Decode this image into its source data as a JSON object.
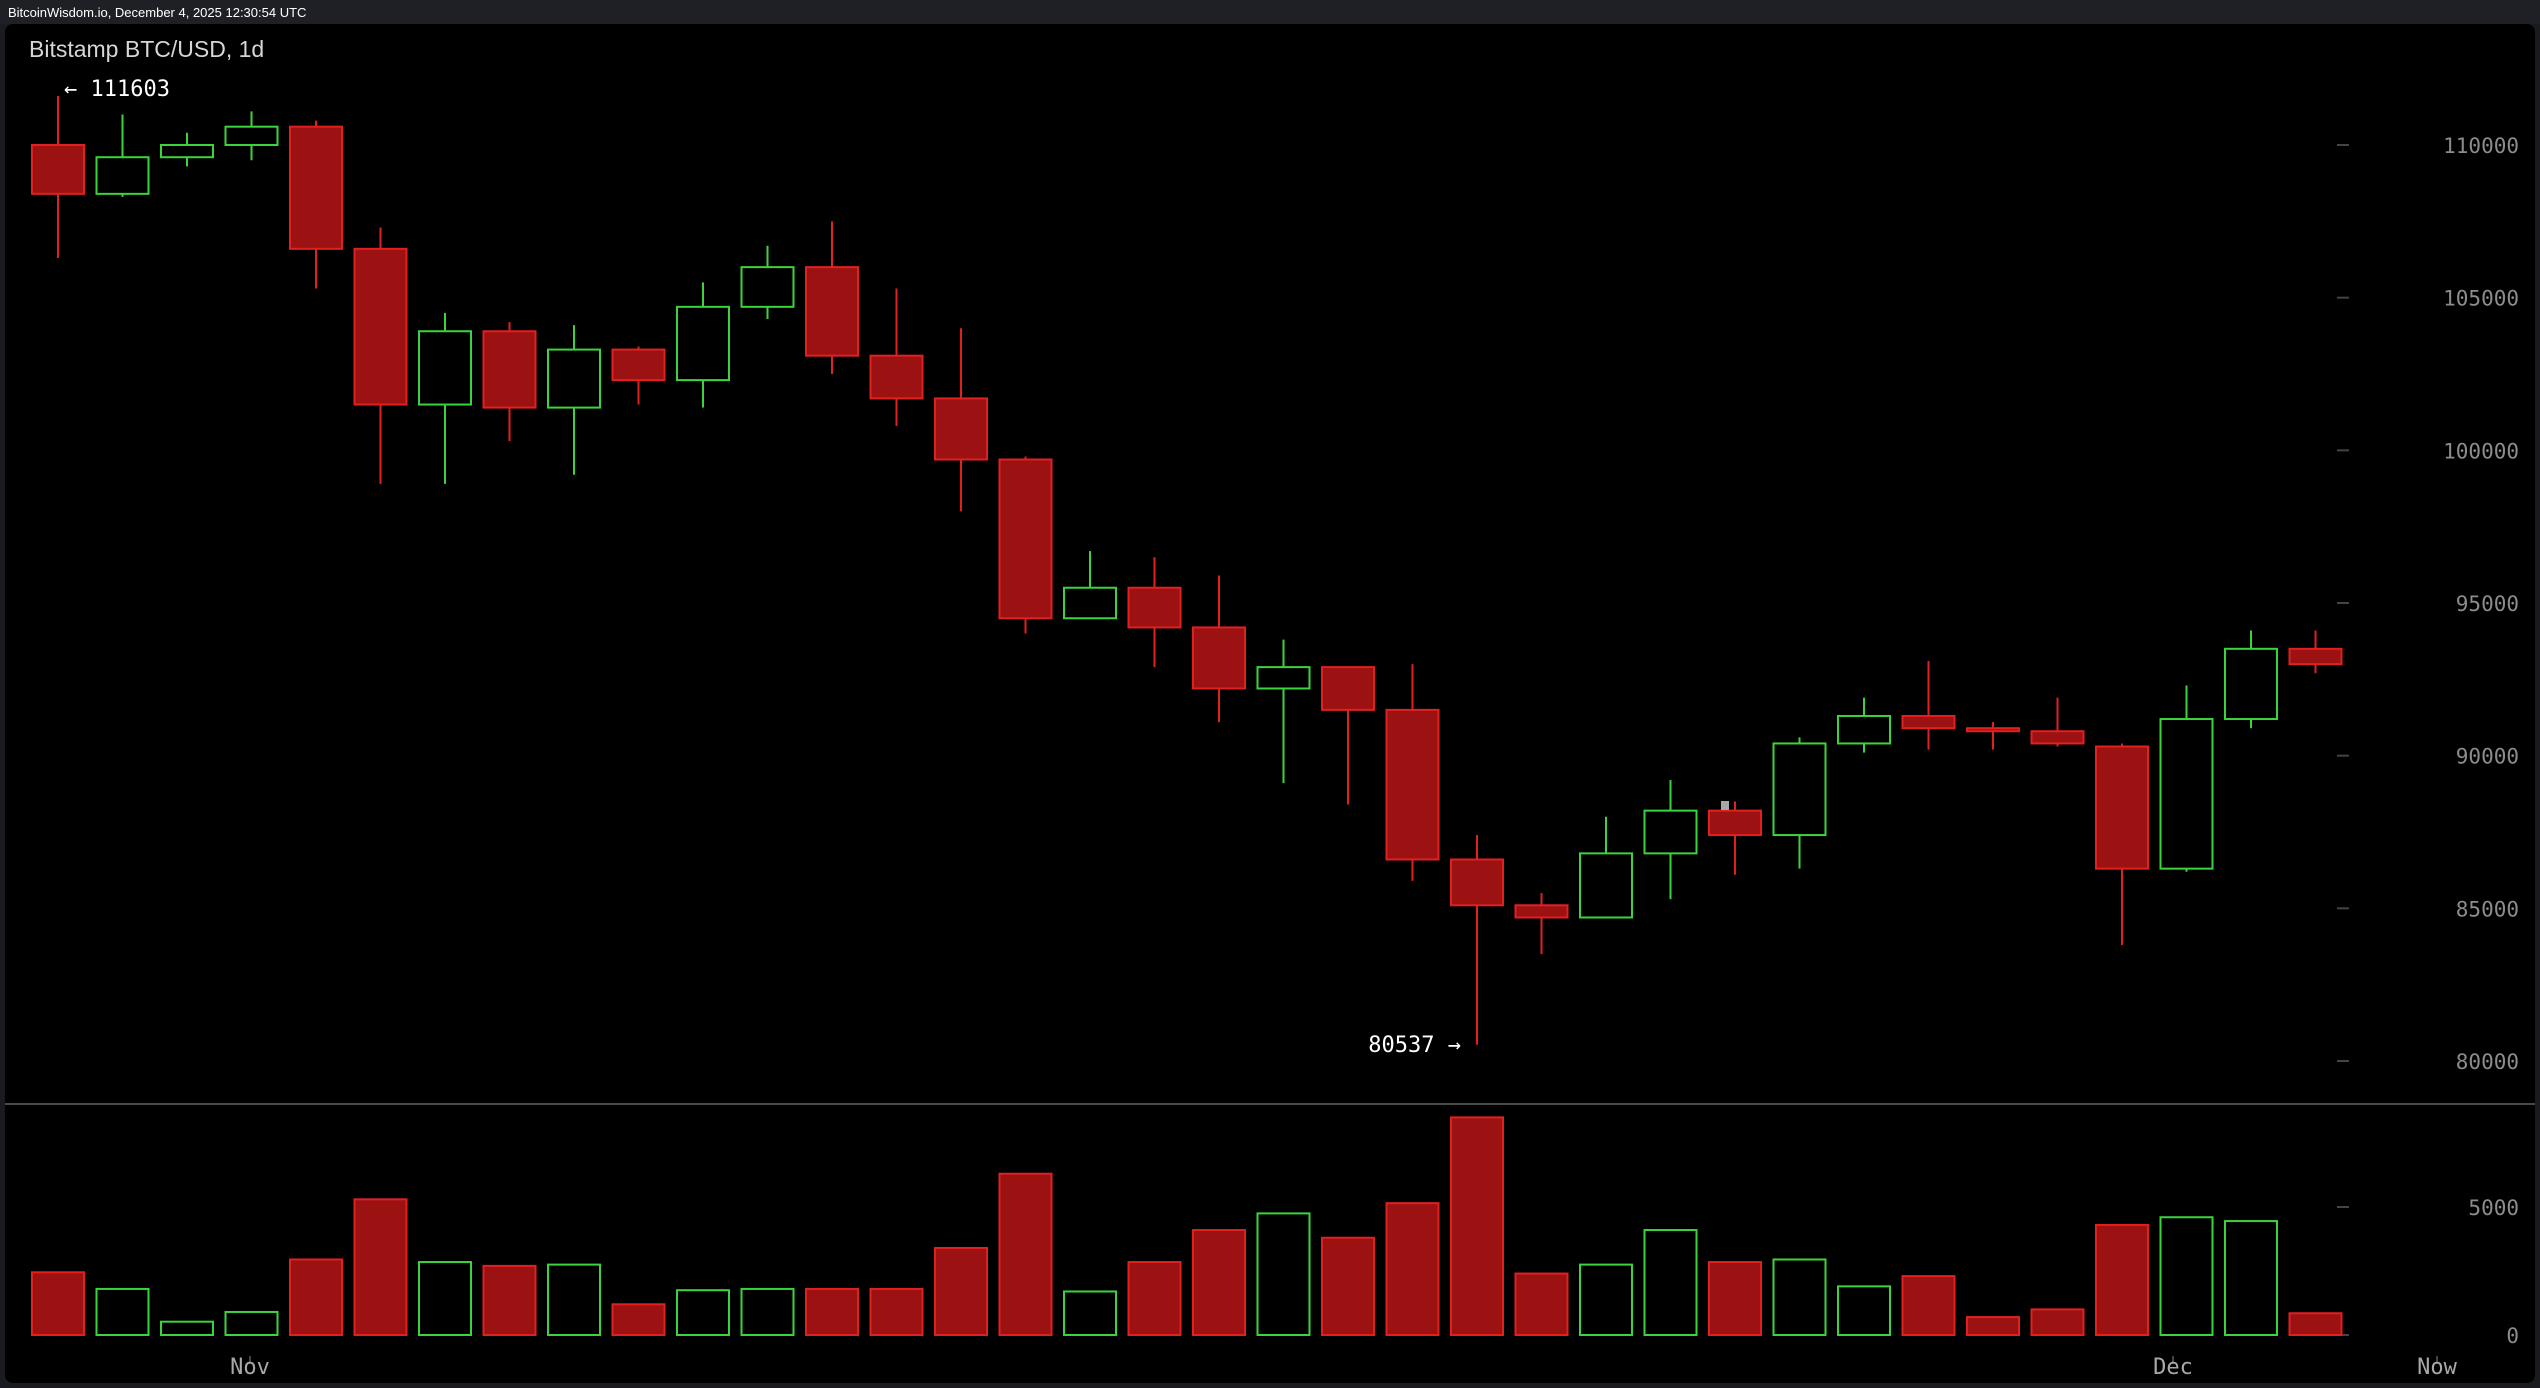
{
  "header": {
    "text": "BitcoinWisdom.io, December 4, 2025 12:30:54 UTC"
  },
  "chart": {
    "title": "Bitstamp BTC/USD, 1d"
  },
  "colors": {
    "up": "#3cd43c",
    "down": "#9c1212",
    "down_edge": "#e12020",
    "grid": "#444444",
    "background": "#000000"
  },
  "chart_data": {
    "type": "candlestick",
    "title": "Bitstamp BTC/USD, 1d",
    "price_ticks": [
      "110000",
      "105000",
      "100000",
      "95000",
      "90000",
      "85000",
      "80000"
    ],
    "price_range": [
      78500,
      113000
    ],
    "volume_ticks": [
      "5000",
      "0"
    ],
    "volume_range": [
      0,
      8500
    ],
    "x_labels": [
      "Nov",
      "Dec",
      "Now"
    ],
    "annotations": {
      "high": "← 111603",
      "low": "80537 →"
    },
    "candles": [
      {
        "o": 110000,
        "h": 111603,
        "l": 106300,
        "c": 108400,
        "v": 2450
      },
      {
        "o": 108400,
        "h": 111000,
        "l": 108300,
        "c": 109600,
        "v": 1800
      },
      {
        "o": 109600,
        "h": 110400,
        "l": 109300,
        "c": 110000,
        "v": 520
      },
      {
        "o": 110000,
        "h": 111100,
        "l": 109500,
        "c": 110600,
        "v": 900
      },
      {
        "o": 110600,
        "h": 110800,
        "l": 105300,
        "c": 106600,
        "v": 2950
      },
      {
        "o": 106600,
        "h": 107300,
        "l": 98900,
        "c": 101500,
        "v": 5300
      },
      {
        "o": 101500,
        "h": 104500,
        "l": 98900,
        "c": 103900,
        "v": 2850
      },
      {
        "o": 103900,
        "h": 104200,
        "l": 100300,
        "c": 101400,
        "v": 2700
      },
      {
        "o": 101400,
        "h": 104100,
        "l": 99200,
        "c": 103300,
        "v": 2750
      },
      {
        "o": 103300,
        "h": 103400,
        "l": 101500,
        "c": 102300,
        "v": 1200
      },
      {
        "o": 102300,
        "h": 105500,
        "l": 101400,
        "c": 104700,
        "v": 1750
      },
      {
        "o": 104700,
        "h": 106700,
        "l": 104300,
        "c": 106000,
        "v": 1800
      },
      {
        "o": 106000,
        "h": 107500,
        "l": 102500,
        "c": 103100,
        "v": 1800
      },
      {
        "o": 103100,
        "h": 105300,
        "l": 100800,
        "c": 101700,
        "v": 1800
      },
      {
        "o": 101700,
        "h": 104000,
        "l": 98000,
        "c": 99700,
        "v": 3400
      },
      {
        "o": 99700,
        "h": 99800,
        "l": 94000,
        "c": 94500,
        "v": 6300
      },
      {
        "o": 94500,
        "h": 96700,
        "l": 94500,
        "c": 95500,
        "v": 1700
      },
      {
        "o": 95500,
        "h": 96500,
        "l": 92900,
        "c": 94200,
        "v": 2850
      },
      {
        "o": 94200,
        "h": 95900,
        "l": 91100,
        "c": 92200,
        "v": 4100
      },
      {
        "o": 92200,
        "h": 93800,
        "l": 89100,
        "c": 92900,
        "v": 4750
      },
      {
        "o": 92900,
        "h": 92900,
        "l": 88400,
        "c": 91500,
        "v": 3800
      },
      {
        "o": 91500,
        "h": 93000,
        "l": 85900,
        "c": 86600,
        "v": 5150
      },
      {
        "o": 86600,
        "h": 87400,
        "l": 80537,
        "c": 85100,
        "v": 8500
      },
      {
        "o": 85100,
        "h": 85500,
        "l": 83500,
        "c": 84700,
        "v": 2400
      },
      {
        "o": 84700,
        "h": 88000,
        "l": 84700,
        "c": 86800,
        "v": 2750
      },
      {
        "o": 86800,
        "h": 89200,
        "l": 85300,
        "c": 88200,
        "v": 4100
      },
      {
        "o": 88200,
        "h": 88500,
        "l": 86100,
        "c": 87400,
        "v": 2850
      },
      {
        "o": 87400,
        "h": 90600,
        "l": 86300,
        "c": 90400,
        "v": 2950
      },
      {
        "o": 90400,
        "h": 91900,
        "l": 90100,
        "c": 91300,
        "v": 1900
      },
      {
        "o": 91300,
        "h": 93100,
        "l": 90200,
        "c": 90900,
        "v": 2300
      },
      {
        "o": 90900,
        "h": 91100,
        "l": 90200,
        "c": 90800,
        "v": 700
      },
      {
        "o": 90800,
        "h": 91900,
        "l": 90300,
        "c": 90400,
        "v": 1000
      },
      {
        "o": 90300,
        "h": 90400,
        "l": 83800,
        "c": 86300,
        "v": 4300
      },
      {
        "o": 86300,
        "h": 92300,
        "l": 86200,
        "c": 91200,
        "v": 4600
      },
      {
        "o": 91200,
        "h": 94100,
        "l": 90900,
        "c": 93500,
        "v": 4450
      },
      {
        "o": 93500,
        "h": 94100,
        "l": 92700,
        "c": 93000,
        "v": 850
      }
    ]
  }
}
